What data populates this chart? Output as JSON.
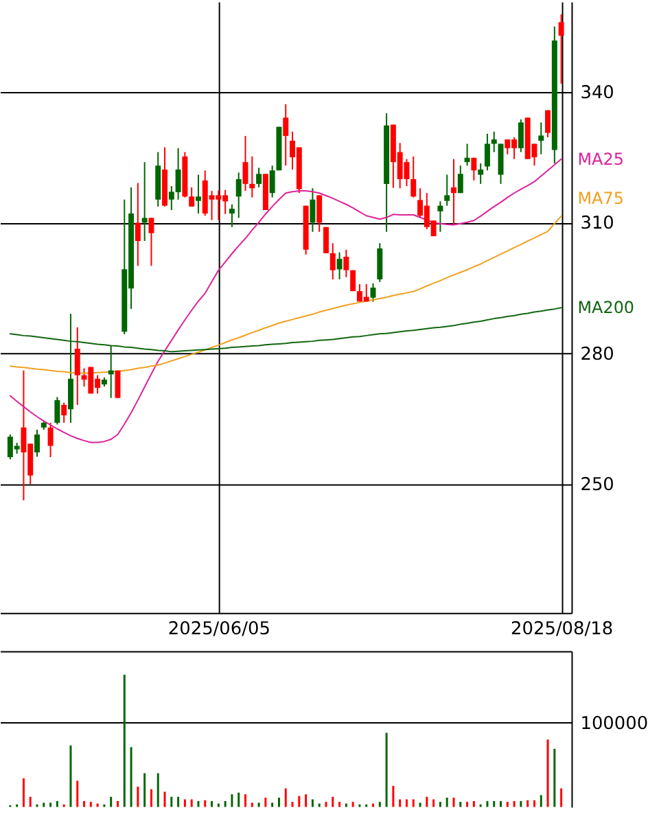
{
  "chart_data": [
    {
      "type": "candlestick",
      "categories": [
        null,
        null,
        null,
        null,
        null,
        null,
        null,
        null,
        null,
        null,
        null,
        null,
        null,
        null,
        null,
        null,
        null,
        null,
        null,
        null,
        null,
        null,
        null,
        null,
        null,
        null,
        null,
        null,
        null,
        null,
        null,
        "2025/06/05",
        null,
        null,
        null,
        null,
        null,
        null,
        null,
        null,
        null,
        null,
        null,
        null,
        null,
        null,
        null,
        null,
        null,
        null,
        null,
        null,
        null,
        null,
        null,
        null,
        null,
        null,
        null,
        null,
        null,
        null,
        null,
        null,
        null,
        null,
        null,
        null,
        null,
        null,
        null,
        null,
        null,
        null,
        null,
        null,
        null,
        null,
        null,
        null,
        null,
        null,
        "2025/08/18"
      ],
      "ohlc": [
        [
          256.2,
          261.4,
          255.7,
          260.9
        ],
        [
          258.0,
          259.5,
          257.0,
          258.8
        ],
        [
          263.0,
          276.1,
          246.3,
          257.3
        ],
        [
          259.3,
          259.3,
          250.0,
          252.0
        ],
        [
          257.3,
          262.5,
          256.3,
          261.4
        ],
        [
          263.0,
          264.6,
          262.5,
          264.1
        ],
        [
          263.0,
          264.1,
          256.2,
          258.8
        ],
        [
          264.1,
          270.0,
          263.7,
          269.3
        ],
        [
          268.2,
          268.7,
          264.1,
          265.8
        ],
        [
          267.2,
          289.1,
          264.1,
          274.2
        ],
        [
          281.1,
          286.0,
          268.2,
          275.0
        ],
        [
          275.0,
          276.6,
          272.4,
          274.0
        ],
        [
          276.9,
          276.9,
          270.8,
          270.8
        ],
        [
          274.2,
          275.0,
          270.8,
          272.1
        ],
        [
          272.9,
          274.5,
          272.4,
          274.0
        ],
        [
          275.2,
          281.8,
          269.8,
          276.1
        ],
        [
          276.1,
          276.1,
          269.8,
          269.8
        ],
        [
          285.0,
          315.3,
          284.4,
          299.3
        ],
        [
          294.9,
          318.1,
          290.2,
          312.1
        ],
        [
          310.0,
          319.1,
          300.1,
          305.8
        ],
        [
          310.0,
          323.9,
          305.8,
          311.1
        ],
        [
          311.1,
          311.1,
          300.1,
          307.6
        ],
        [
          315.3,
          326.2,
          313.7,
          323.1
        ],
        [
          322.2,
          327.3,
          313.7,
          313.9
        ],
        [
          315.3,
          318.4,
          312.9,
          317.1
        ],
        [
          317.0,
          327.1,
          315.3,
          322.2
        ],
        [
          325.2,
          326.2,
          315.8,
          316.0
        ],
        [
          316.0,
          318.1,
          313.7,
          313.7
        ],
        [
          315.0,
          321.0,
          312.1,
          316.0
        ],
        [
          319.7,
          322.0,
          311.6,
          312.1
        ],
        [
          316.3,
          317.3,
          310.6,
          315.3
        ],
        [
          316.3,
          317.4,
          310.6,
          315.3
        ],
        [
          316.3,
          317.5,
          312.0,
          314.9
        ],
        [
          312.1,
          314.2,
          309.0,
          313.2
        ],
        [
          316.0,
          321.5,
          311.1,
          320.0
        ],
        [
          323.9,
          329.9,
          317.3,
          318.9
        ],
        [
          318.9,
          325.2,
          315.8,
          317.9
        ],
        [
          318.9,
          322.6,
          318.1,
          321.2
        ],
        [
          321.2,
          321.2,
          312.9,
          312.9
        ],
        [
          316.8,
          323.1,
          315.8,
          322.0
        ],
        [
          322.0,
          332.0,
          322.0,
          332.0
        ],
        [
          334.1,
          337.2,
          323.1,
          329.9
        ],
        [
          328.8,
          330.9,
          322.2,
          325.0
        ],
        [
          327.3,
          327.3,
          316.8,
          317.7
        ],
        [
          313.9,
          313.9,
          302.7,
          303.8
        ],
        [
          310.0,
          317.9,
          307.9,
          315.3
        ],
        [
          316.3,
          316.3,
          307.9,
          310.0
        ],
        [
          309.0,
          309.0,
          303.0,
          303.0
        ],
        [
          303.0,
          305.3,
          297.0,
          299.1
        ],
        [
          299.3,
          303.2,
          297.0,
          301.7
        ],
        [
          302.2,
          303.8,
          297.5,
          299.1
        ],
        [
          299.1,
          299.1,
          294.3,
          294.3
        ],
        [
          294.3,
          295.9,
          291.9,
          291.9
        ],
        [
          293.0,
          295.9,
          291.9,
          291.9
        ],
        [
          292.8,
          296.1,
          291.9,
          295.1
        ],
        [
          297.0,
          305.3,
          296.4,
          304.1
        ],
        [
          318.9,
          335.1,
          307.9,
          332.3
        ],
        [
          332.5,
          332.5,
          318.0,
          323.9
        ],
        [
          326.2,
          328.3,
          317.9,
          320.0
        ],
        [
          323.9,
          324.6,
          318.4,
          320.0
        ],
        [
          320.0,
          325.2,
          315.8,
          316.0
        ],
        [
          315.2,
          317.9,
          311.1,
          311.6
        ],
        [
          313.9,
          316.8,
          308.5,
          309.0
        ],
        [
          310.5,
          310.5,
          306.9,
          306.9
        ],
        [
          312.6,
          314.9,
          307.9,
          313.9
        ],
        [
          315.0,
          321.0,
          313.9,
          316.3
        ],
        [
          318.1,
          324.6,
          309.5,
          316.8
        ],
        [
          316.8,
          323.1,
          316.8,
          321.2
        ],
        [
          323.9,
          328.1,
          323.1,
          324.9
        ],
        [
          324.9,
          324.9,
          319.7,
          322.0
        ],
        [
          321.0,
          323.6,
          318.9,
          322.2
        ],
        [
          322.9,
          330.4,
          322.0,
          328.1
        ],
        [
          328.1,
          330.9,
          326.2,
          329.1
        ],
        [
          321.0,
          328.1,
          318.9,
          328.1
        ],
        [
          329.1,
          329.1,
          325.7,
          327.1
        ],
        [
          329.1,
          329.6,
          324.6,
          327.1
        ],
        [
          327.1,
          333.7,
          326.2,
          333.0
        ],
        [
          334.1,
          334.1,
          324.6,
          324.6
        ],
        [
          328.1,
          328.1,
          323.1,
          325.0
        ],
        [
          328.8,
          333.0,
          325.7,
          330.0
        ],
        [
          335.8,
          335.8,
          329.6,
          330.6
        ],
        [
          326.7,
          355.0,
          323.6,
          351.8
        ],
        [
          356.0,
          357.8,
          341.9,
          352.9
        ]
      ],
      "colors": [
        "#006600",
        "#006600",
        "#ff0000",
        "#ff0000",
        "#006600",
        "#006600",
        "#ff0000",
        "#006600",
        "#ff0000",
        "#006600",
        "#ff0000",
        "#ff0000",
        "#ff0000",
        "#ff0000",
        "#006600",
        "#006600",
        "#ff0000",
        "#006600",
        "#006600",
        "#ff0000",
        "#006600",
        "#ff0000",
        "#006600",
        "#ff0000",
        "#006600",
        "#006600",
        "#ff0000",
        "#ff0000",
        "#006600",
        "#ff0000",
        "#ff0000",
        "#ff0000",
        "#ff0000",
        "#006600",
        "#006600",
        "#ff0000",
        "#ff0000",
        "#006600",
        "#ff0000",
        "#006600",
        "#006600",
        "#ff0000",
        "#ff0000",
        "#ff0000",
        "#ff0000",
        "#006600",
        "#ff0000",
        "#ff0000",
        "#ff0000",
        "#006600",
        "#ff0000",
        "#ff0000",
        "#ff0000",
        "#ff0000",
        "#006600",
        "#006600",
        "#006600",
        "#ff0000",
        "#ff0000",
        "#ff0000",
        "#ff0000",
        "#ff0000",
        "#ff0000",
        "#ff0000",
        "#006600",
        "#006600",
        "#ff0000",
        "#006600",
        "#006600",
        "#ff0000",
        "#006600",
        "#006600",
        "#006600",
        "#006600",
        "#ff0000",
        "#ff0000",
        "#006600",
        "#ff0000",
        "#ff0000",
        "#006600",
        "#ff0000",
        "#006600",
        "#ff0000"
      ],
      "series": [
        {
          "name": "MA25",
          "type": "line",
          "color": "#dd2299",
          "values": [
            270.3,
            269.0,
            267.8,
            266.6,
            265.5,
            264.5,
            263.6,
            262.7,
            261.9,
            261.1,
            260.5,
            260.0,
            259.6,
            259.6,
            259.8,
            260.3,
            261.4,
            263.8,
            266.4,
            269.3,
            272.3,
            275.3,
            278.2,
            280.6,
            283.0,
            285.4,
            287.7,
            289.9,
            292.0,
            293.8,
            296.5,
            299.1,
            301.0,
            302.9,
            304.7,
            306.4,
            308.3,
            310.1,
            312.0,
            313.7,
            315.3,
            316.8,
            317.1,
            317.3,
            317.3,
            317.1,
            316.8,
            316.2,
            315.6,
            314.9,
            314.2,
            313.4,
            312.5,
            311.6,
            311.2,
            310.8,
            311.2,
            311.9,
            311.8,
            311.8,
            311.8,
            311.2,
            310.6,
            310.0,
            309.8,
            309.6,
            309.5,
            309.8,
            310.1,
            310.5,
            311.5,
            312.6,
            313.7,
            314.7,
            315.8,
            316.8,
            317.7,
            318.5,
            319.4,
            320.7,
            322.0,
            323.3,
            324.6
          ]
        },
        {
          "name": "MA75",
          "type": "line",
          "color": "#f0a020",
          "values": [
            277.1,
            276.9,
            276.8,
            276.6,
            276.4,
            276.3,
            276.1,
            275.9,
            275.8,
            275.6,
            275.5,
            275.5,
            275.5,
            275.6,
            275.7,
            275.8,
            275.9,
            276.1,
            276.3,
            276.6,
            276.8,
            277.1,
            277.3,
            277.8,
            278.3,
            278.8,
            279.3,
            279.8,
            280.3,
            280.8,
            281.4,
            281.9,
            282.5,
            283.1,
            283.6,
            284.2,
            284.8,
            285.3,
            285.9,
            286.4,
            287.0,
            287.4,
            287.8,
            288.2,
            288.6,
            289.0,
            289.5,
            289.9,
            290.3,
            290.7,
            291.1,
            291.4,
            291.7,
            292.0,
            292.3,
            292.6,
            292.9,
            293.3,
            293.6,
            293.9,
            294.2,
            294.8,
            295.5,
            296.1,
            296.7,
            297.4,
            298.0,
            298.6,
            299.2,
            299.9,
            300.5,
            301.3,
            302.0,
            302.8,
            303.5,
            304.3,
            305.0,
            305.8,
            306.5,
            307.3,
            308.0,
            309.8,
            311.5
          ]
        },
        {
          "name": "MA200",
          "type": "line",
          "color": "#116611",
          "values": [
            284.5,
            284.3,
            284.1,
            284.0,
            283.8,
            283.6,
            283.4,
            283.2,
            283.0,
            282.8,
            282.7,
            282.5,
            282.3,
            282.1,
            282.0,
            281.8,
            281.7,
            281.5,
            281.4,
            281.2,
            281.0,
            280.9,
            280.7,
            280.6,
            280.4,
            280.5,
            280.6,
            280.7,
            280.8,
            280.9,
            281.0,
            281.1,
            281.2,
            281.4,
            281.5,
            281.6,
            281.7,
            281.8,
            282.0,
            282.1,
            282.2,
            282.3,
            282.5,
            282.6,
            282.7,
            282.8,
            283.0,
            283.1,
            283.2,
            283.4,
            283.6,
            283.8,
            283.9,
            284.1,
            284.3,
            284.5,
            284.6,
            284.8,
            285.0,
            285.2,
            285.3,
            285.5,
            285.7,
            285.9,
            286.0,
            286.2,
            286.4,
            286.7,
            286.9,
            287.2,
            287.4,
            287.7,
            288.0,
            288.2,
            288.5,
            288.7,
            289.0,
            289.2,
            289.5,
            289.7,
            290.0,
            290.2,
            290.5
          ]
        }
      ],
      "ylim": [
        220.5,
        360.7
      ],
      "yticks": [
        250,
        280,
        310,
        340
      ],
      "grid": true
    },
    {
      "type": "bar",
      "categories": [
        null,
        null,
        null,
        null,
        null,
        null,
        null,
        null,
        null,
        null,
        null,
        null,
        null,
        null,
        null,
        null,
        null,
        null,
        null,
        null,
        null,
        null,
        null,
        null,
        null,
        null,
        null,
        null,
        null,
        null,
        null,
        null,
        null,
        null,
        null,
        null,
        null,
        null,
        null,
        null,
        null,
        null,
        null,
        null,
        null,
        null,
        null,
        null,
        null,
        null,
        null,
        null,
        null,
        null,
        null,
        null,
        null,
        null,
        null,
        null,
        null,
        null,
        null,
        null,
        null,
        null,
        null,
        null,
        null,
        null,
        null,
        null,
        null,
        null,
        null,
        null,
        null,
        null,
        null,
        null,
        null,
        null,
        null
      ],
      "values": [
        2000,
        3000,
        34000,
        12000,
        3000,
        5000,
        5000,
        7000,
        3000,
        73000,
        31000,
        7000,
        6000,
        4000,
        3000,
        12000,
        7000,
        157000,
        71000,
        24000,
        40000,
        21000,
        40000,
        18000,
        12000,
        12000,
        9000,
        9000,
        7000,
        8000,
        7000,
        4000,
        7000,
        15000,
        17000,
        15000,
        5000,
        5000,
        11000,
        5000,
        11000,
        22000,
        6000,
        13000,
        15000,
        9000,
        4000,
        6000,
        12000,
        6000,
        4000,
        6000,
        3000,
        3000,
        4000,
        6000,
        88000,
        25000,
        9000,
        9000,
        9000,
        5000,
        12000,
        9000,
        6000,
        11000,
        11000,
        6000,
        6000,
        7000,
        3000,
        7000,
        7000,
        7000,
        6000,
        7000,
        7000,
        8000,
        8000,
        14000,
        80000,
        69000,
        22000
      ],
      "colors": [
        "#006600",
        "#006600",
        "#ff0000",
        "#ff0000",
        "#006600",
        "#006600",
        "#006600",
        "#006600",
        "#ff0000",
        "#006600",
        "#ff0000",
        "#ff0000",
        "#ff0000",
        "#ff0000",
        "#006600",
        "#006600",
        "#ff0000",
        "#006600",
        "#006600",
        "#ff0000",
        "#006600",
        "#ff0000",
        "#006600",
        "#ff0000",
        "#006600",
        "#006600",
        "#ff0000",
        "#ff0000",
        "#006600",
        "#ff0000",
        "#006600",
        "#006600",
        "#006600",
        "#006600",
        "#006600",
        "#ff0000",
        "#ff0000",
        "#006600",
        "#ff0000",
        "#006600",
        "#006600",
        "#ff0000",
        "#ff0000",
        "#ff0000",
        "#ff0000",
        "#006600",
        "#006600",
        "#ff0000",
        "#ff0000",
        "#ff0000",
        "#006600",
        "#ff0000",
        "#006600",
        "#006600",
        "#ff0000",
        "#006600",
        "#006600",
        "#ff0000",
        "#ff0000",
        "#ff0000",
        "#ff0000",
        "#006600",
        "#ff0000",
        "#ff0000",
        "#006600",
        "#006600",
        "#ff0000",
        "#006600",
        "#ff0000",
        "#ff0000",
        "#006600",
        "#006600",
        "#006600",
        "#006600",
        "#ff0000",
        "#ff0000",
        "#006600",
        "#ff0000",
        "#ff0000",
        "#006600",
        "#ff0000",
        "#006600",
        "#ff0000"
      ],
      "ylim": [
        0,
        185000
      ],
      "yticks": [
        100000
      ],
      "grid": "y",
      "tick_labels": "y"
    }
  ]
}
